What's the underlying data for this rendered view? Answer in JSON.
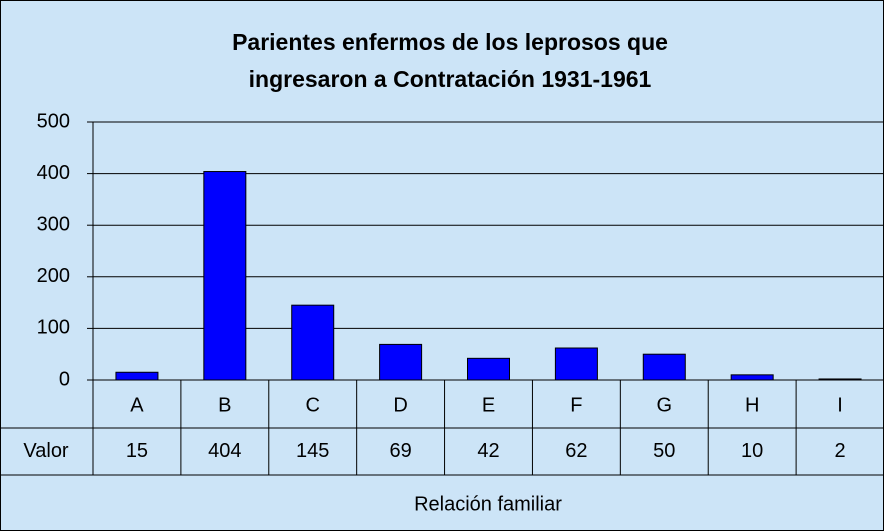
{
  "chart_data": {
    "type": "bar",
    "title": [
      "Parientes enfermos de los leprosos que",
      "ingresaron a  Contratación 1931-1961"
    ],
    "categories": [
      "A",
      "B",
      "C",
      "D",
      "E",
      "F",
      "G",
      "H",
      "I"
    ],
    "series": [
      {
        "name": "Valor",
        "color": "#0000ff",
        "values": [
          15,
          404,
          145,
          69,
          42,
          62,
          50,
          10,
          2
        ]
      }
    ],
    "ylim": [
      0,
      500
    ],
    "yticks": [
      0,
      100,
      200,
      300,
      400,
      500
    ],
    "x_label": "Relación familiar",
    "grid": true
  }
}
